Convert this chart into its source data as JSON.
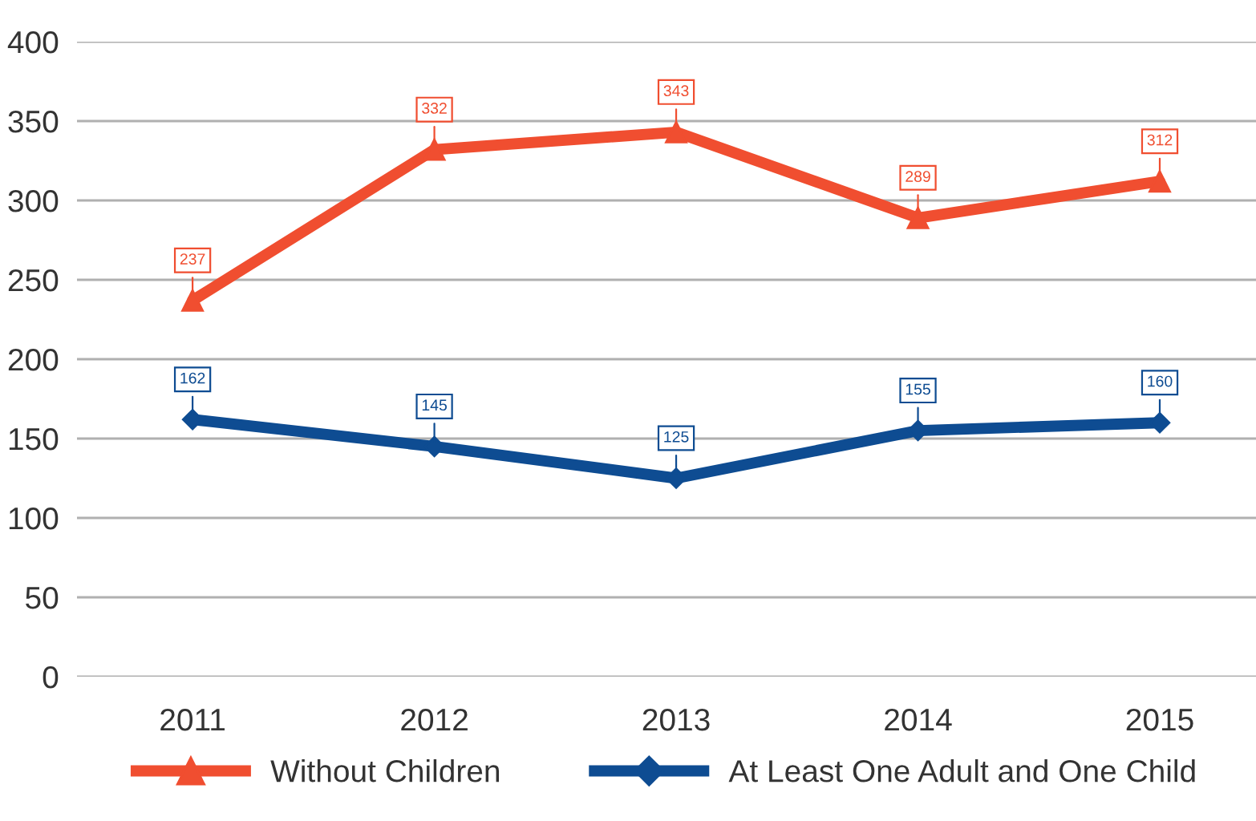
{
  "chart_data": {
    "type": "line",
    "categories": [
      "2011",
      "2012",
      "2013",
      "2014",
      "2015"
    ],
    "series": [
      {
        "name": "Without Children",
        "color": "#f04e30",
        "marker": "triangle",
        "values": [
          237,
          332,
          343,
          289,
          312
        ]
      },
      {
        "name": "At Least One Adult and One Child",
        "color": "#0e4c92",
        "marker": "diamond",
        "values": [
          162,
          145,
          125,
          155,
          160
        ]
      }
    ],
    "ylim": [
      0,
      400
    ],
    "yticks": [
      0,
      50,
      100,
      150,
      200,
      250,
      300,
      350,
      400
    ],
    "grid": "y",
    "legend": "bottom",
    "data_labels": true,
    "line_style": "solid"
  }
}
